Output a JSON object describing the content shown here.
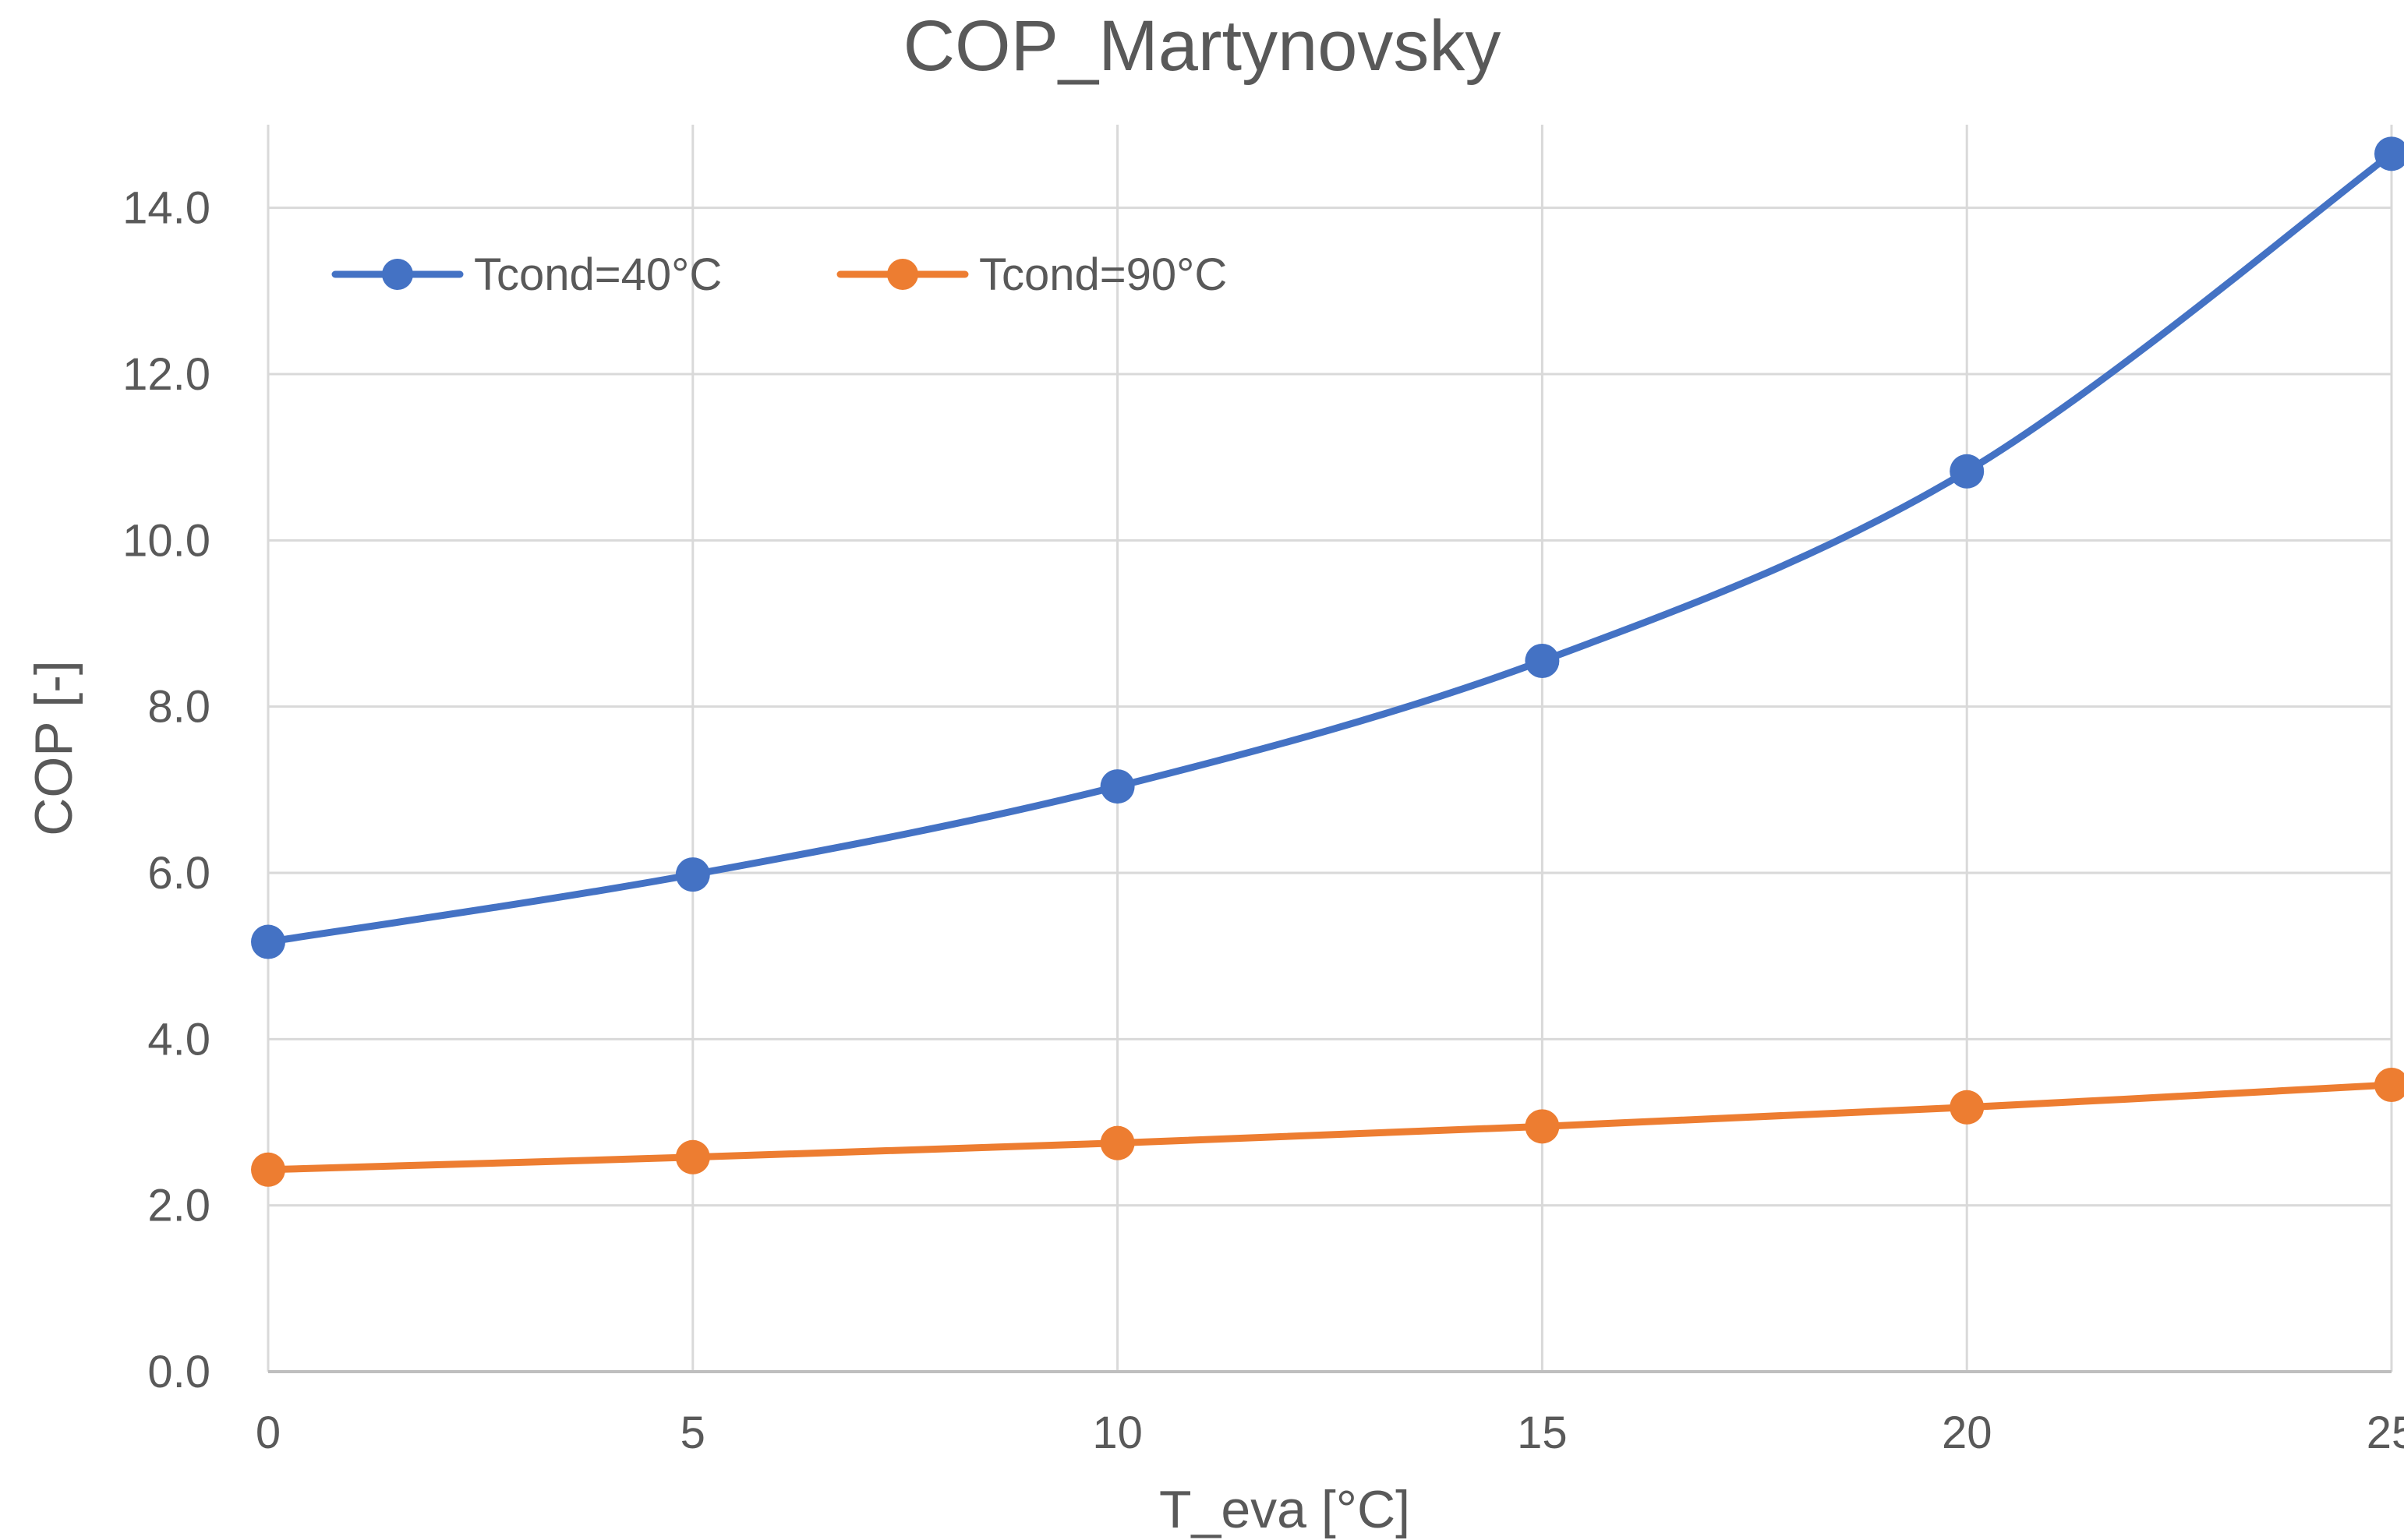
{
  "chart_data": {
    "type": "line",
    "title": "COP_Martynovsky",
    "xlabel": "T_eva [°C]",
    "ylabel": "COP [-]",
    "x": [
      0,
      5,
      10,
      15,
      20,
      25
    ],
    "xlim": [
      0,
      25
    ],
    "ylim": [
      0,
      15
    ],
    "x_ticks": [
      "0",
      "5",
      "10",
      "15",
      "20",
      "25"
    ],
    "y_ticks": [
      "0.0",
      "2.0",
      "4.0",
      "6.0",
      "8.0",
      "10.0",
      "12.0",
      "14.0"
    ],
    "y_tick_values": [
      0,
      2,
      4,
      6,
      8,
      10,
      12,
      14
    ],
    "grid": true,
    "legend_position": "top-left",
    "smooth": true,
    "series": [
      {
        "name": "Tcond=40°C",
        "color": "#4472C4",
        "values": [
          5.17,
          5.98,
          7.04,
          8.55,
          10.83,
          14.65
        ]
      },
      {
        "name": "Tcond=90°C",
        "color": "#ED7D31",
        "values": [
          2.43,
          2.58,
          2.75,
          2.95,
          3.18,
          3.45
        ]
      }
    ]
  }
}
